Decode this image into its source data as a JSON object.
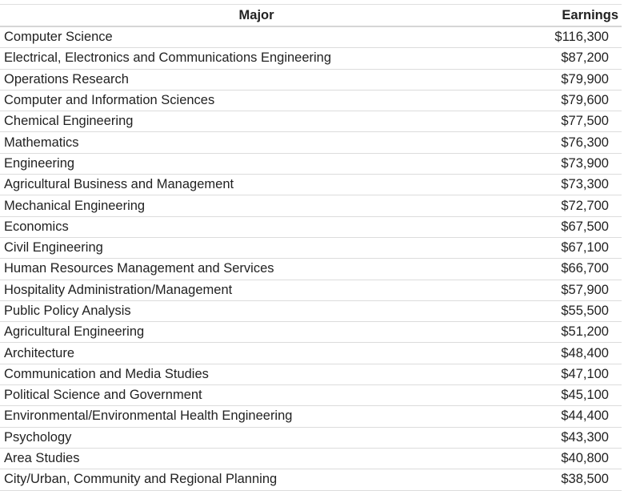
{
  "table": {
    "headers": {
      "major": "Major",
      "earnings": "Earnings"
    },
    "rows": [
      {
        "major": "Computer Science",
        "earnings": "$116,300"
      },
      {
        "major": "Electrical, Electronics and Communications Engineering",
        "earnings": "$87,200"
      },
      {
        "major": "Operations Research",
        "earnings": "$79,900"
      },
      {
        "major": "Computer and Information Sciences",
        "earnings": "$79,600"
      },
      {
        "major": "Chemical Engineering",
        "earnings": "$77,500"
      },
      {
        "major": "Mathematics",
        "earnings": "$76,300"
      },
      {
        "major": "Engineering",
        "earnings": "$73,900"
      },
      {
        "major": "Agricultural Business and Management",
        "earnings": "$73,300"
      },
      {
        "major": "Mechanical Engineering",
        "earnings": "$72,700"
      },
      {
        "major": "Economics",
        "earnings": "$67,500"
      },
      {
        "major": "Civil Engineering",
        "earnings": "$67,100"
      },
      {
        "major": "Human Resources Management and Services",
        "earnings": "$66,700"
      },
      {
        "major": "Hospitality Administration/Management",
        "earnings": "$57,900"
      },
      {
        "major": "Public Policy Analysis",
        "earnings": "$55,500"
      },
      {
        "major": "Agricultural Engineering",
        "earnings": "$51,200"
      },
      {
        "major": "Architecture",
        "earnings": "$48,400"
      },
      {
        "major": "Communication and Media Studies",
        "earnings": "$47,100"
      },
      {
        "major": "Political Science and Government",
        "earnings": "$45,100"
      },
      {
        "major": "Environmental/Environmental Health Engineering",
        "earnings": "$44,400"
      },
      {
        "major": "Psychology",
        "earnings": "$43,300"
      },
      {
        "major": "Area Studies",
        "earnings": "$40,800"
      },
      {
        "major": "City/Urban, Community and Regional Planning",
        "earnings": "$38,500"
      }
    ]
  }
}
